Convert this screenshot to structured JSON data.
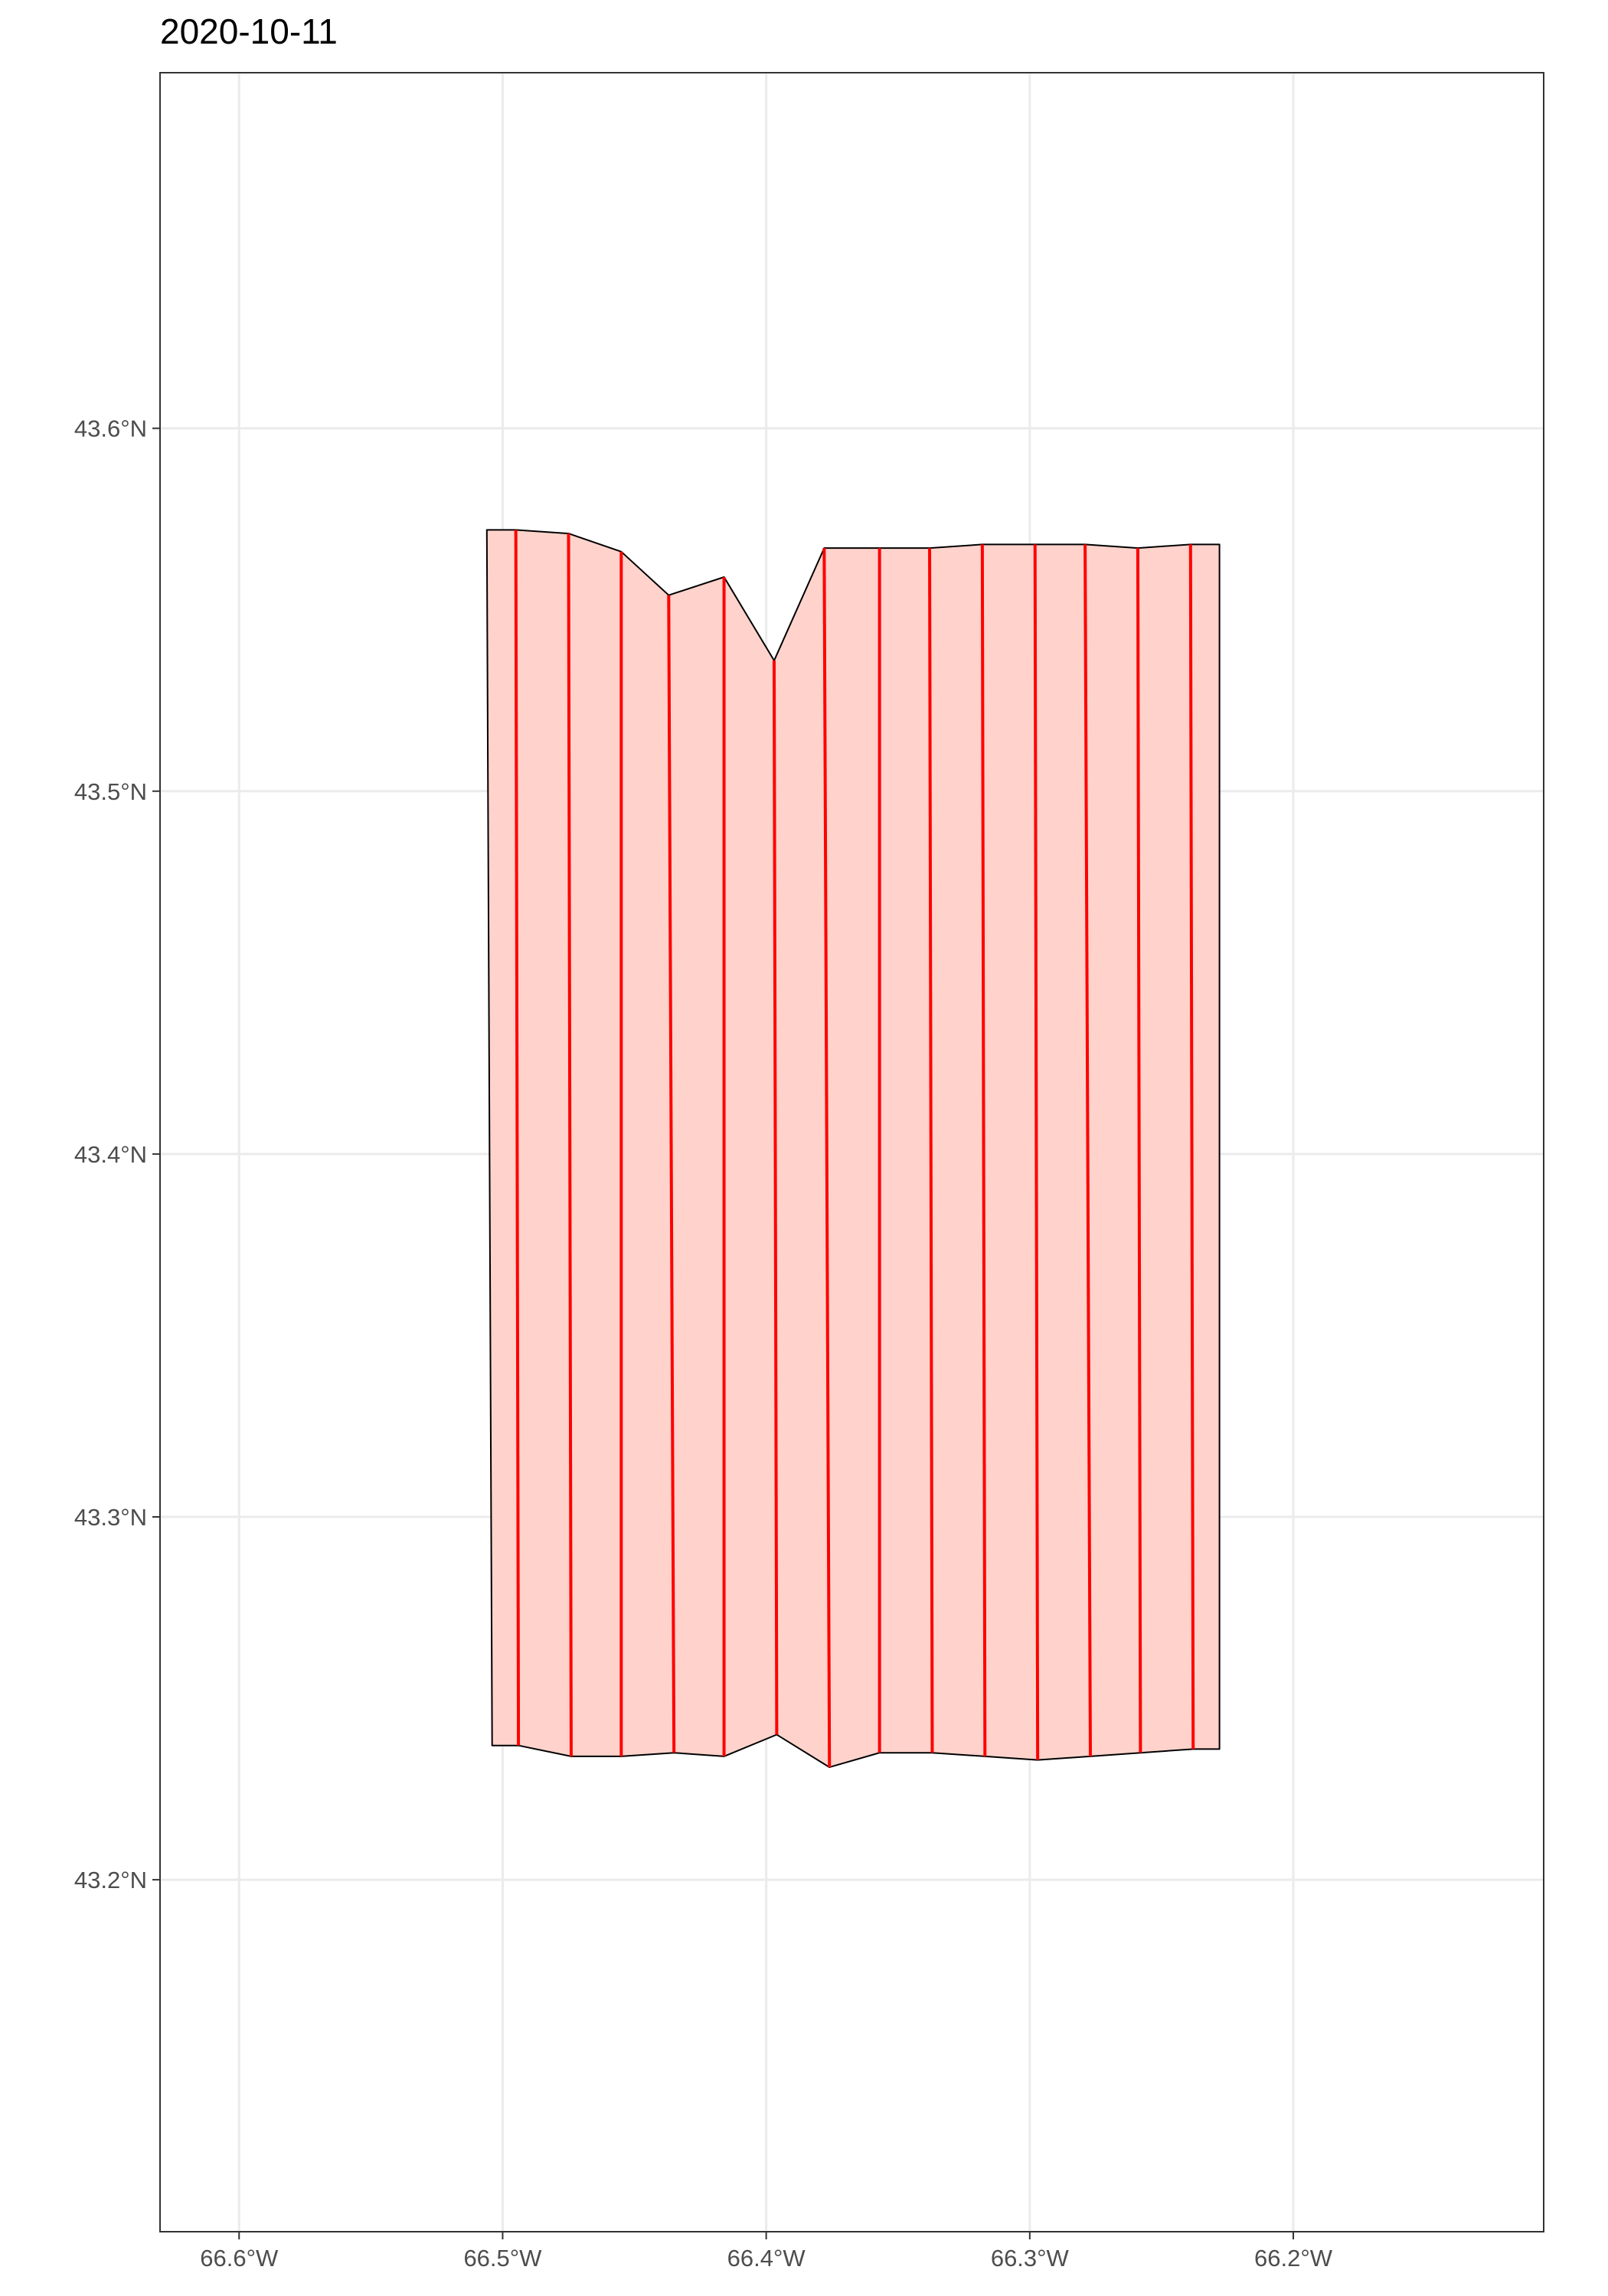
{
  "title": "2020-10-11",
  "map": {
    "lon_range": [
      -66.63,
      -66.105
    ],
    "lat_range": [
      43.103,
      43.698
    ],
    "x_ticks": [
      {
        "value": -66.6,
        "label": "66.6°W"
      },
      {
        "value": -66.5,
        "label": "66.5°W"
      },
      {
        "value": -66.4,
        "label": "66.4°W"
      },
      {
        "value": -66.3,
        "label": "66.3°W"
      },
      {
        "value": -66.2,
        "label": "66.2°W"
      }
    ],
    "y_ticks": [
      {
        "value": 43.2,
        "label": "43.2°N"
      },
      {
        "value": 43.3,
        "label": "43.3°N"
      },
      {
        "value": 43.4,
        "label": "43.4°N"
      },
      {
        "value": 43.5,
        "label": "43.5°N"
      },
      {
        "value": 43.6,
        "label": "43.6°N"
      }
    ],
    "grid": true,
    "colors": {
      "polygon_fill": "#ffd3cc",
      "polygon_stroke": "#000000",
      "track_line": "#ff0000",
      "grid": "#ebebeb",
      "panel_border": "#333333"
    },
    "survey_polygon": [
      [
        -66.506,
        43.572
      ],
      [
        -66.495,
        43.572
      ],
      [
        -66.475,
        43.571
      ],
      [
        -66.455,
        43.566
      ],
      [
        -66.437,
        43.554
      ],
      [
        -66.416,
        43.559
      ],
      [
        -66.397,
        43.536
      ],
      [
        -66.378,
        43.567
      ],
      [
        -66.357,
        43.567
      ],
      [
        -66.338,
        43.567
      ],
      [
        -66.318,
        43.568
      ],
      [
        -66.298,
        43.568
      ],
      [
        -66.279,
        43.568
      ],
      [
        -66.259,
        43.567
      ],
      [
        -66.239,
        43.568
      ],
      [
        -66.228,
        43.568
      ],
      [
        -66.228,
        43.236
      ],
      [
        -66.238,
        43.236
      ],
      [
        -66.258,
        43.235
      ],
      [
        -66.277,
        43.234
      ],
      [
        -66.297,
        43.233
      ],
      [
        -66.317,
        43.234
      ],
      [
        -66.337,
        43.235
      ],
      [
        -66.357,
        43.235
      ],
      [
        -66.376,
        43.231
      ],
      [
        -66.396,
        43.24
      ],
      [
        -66.416,
        43.234
      ],
      [
        -66.435,
        43.235
      ],
      [
        -66.455,
        43.234
      ],
      [
        -66.474,
        43.234
      ],
      [
        -66.494,
        43.237
      ],
      [
        -66.504,
        43.237
      ]
    ],
    "track_lines": [
      [
        [
          -66.495,
          43.572
        ],
        [
          -66.494,
          43.237
        ]
      ],
      [
        [
          -66.475,
          43.571
        ],
        [
          -66.474,
          43.234
        ]
      ],
      [
        [
          -66.455,
          43.566
        ],
        [
          -66.455,
          43.234
        ]
      ],
      [
        [
          -66.437,
          43.554
        ],
        [
          -66.435,
          43.235
        ]
      ],
      [
        [
          -66.416,
          43.559
        ],
        [
          -66.416,
          43.234
        ]
      ],
      [
        [
          -66.397,
          43.536
        ],
        [
          -66.396,
          43.24
        ]
      ],
      [
        [
          -66.378,
          43.567
        ],
        [
          -66.376,
          43.231
        ]
      ],
      [
        [
          -66.357,
          43.567
        ],
        [
          -66.357,
          43.235
        ]
      ],
      [
        [
          -66.338,
          43.567
        ],
        [
          -66.337,
          43.235
        ]
      ],
      [
        [
          -66.318,
          43.568
        ],
        [
          -66.317,
          43.234
        ]
      ],
      [
        [
          -66.298,
          43.568
        ],
        [
          -66.297,
          43.233
        ]
      ],
      [
        [
          -66.279,
          43.568
        ],
        [
          -66.277,
          43.234
        ]
      ],
      [
        [
          -66.259,
          43.567
        ],
        [
          -66.258,
          43.235
        ]
      ],
      [
        [
          -66.239,
          43.568
        ],
        [
          -66.238,
          43.236
        ]
      ]
    ]
  }
}
